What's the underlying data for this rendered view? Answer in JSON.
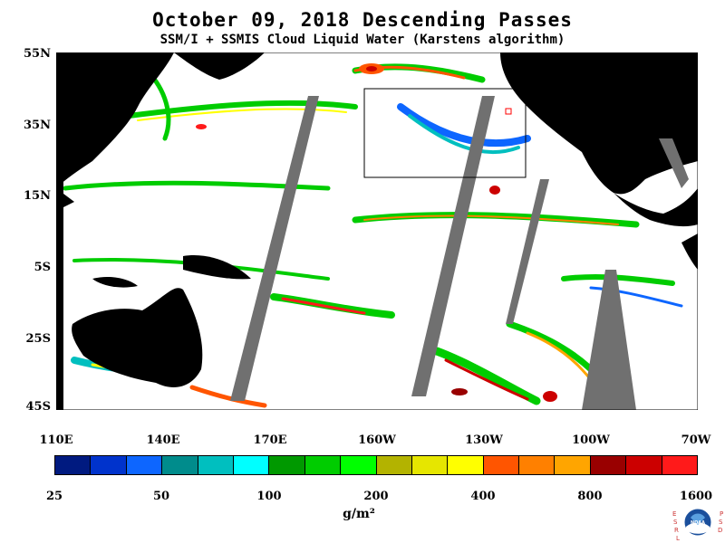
{
  "header": {
    "title": "October 09, 2018  Descending Passes",
    "subtitle": "SSM/I + SSMIS Cloud Liquid Water (Karstens algorithm)"
  },
  "map": {
    "lat_labels": [
      "55N",
      "35N",
      "15N",
      "5S",
      "25S",
      "45S"
    ],
    "lon_labels": [
      "110E",
      "140E",
      "170E",
      "160W",
      "130W",
      "100W",
      "70W"
    ]
  },
  "colorbar": {
    "colors": [
      "#001a80",
      "#0033cc",
      "#0d66ff",
      "#008c8c",
      "#00bfbf",
      "#00ffff",
      "#009900",
      "#00cc00",
      "#00ff00",
      "#b3b300",
      "#e6e600",
      "#ffff00",
      "#ff5500",
      "#ff8000",
      "#ffa500",
      "#990000",
      "#cc0000",
      "#ff1a1a"
    ],
    "tick_labels": [
      "25",
      "50",
      "100",
      "200",
      "400",
      "800",
      "1600"
    ],
    "units": "g/m²"
  },
  "logo": {
    "left_letters": "ESRL",
    "right_letters": "PSD",
    "center_text": "NOAA"
  }
}
